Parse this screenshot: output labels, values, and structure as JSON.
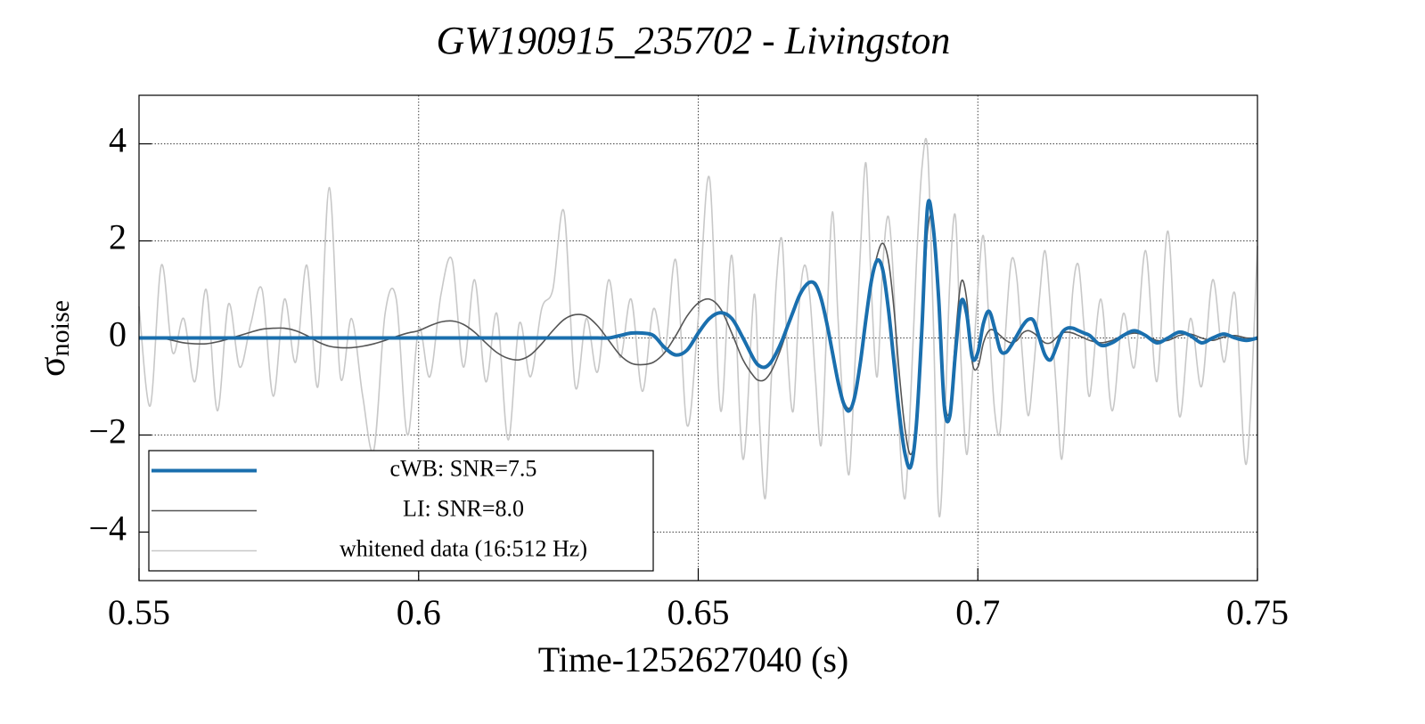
{
  "chart_data": {
    "type": "line",
    "title": "GW190915_235702 - Livingston",
    "xlabel": "Time-1252627040 (s)",
    "ylabel": "σ",
    "ylabel_subscript": "noise",
    "xlim": [
      0.55,
      0.75
    ],
    "xticks": [
      0.55,
      0.6,
      0.65,
      0.7,
      0.75
    ],
    "ylim": [
      -5,
      5
    ],
    "yticks": [
      {
        "value": -4,
        "label": "−4"
      },
      {
        "value": -2,
        "label": "−2"
      },
      0,
      2,
      4
    ],
    "grid": true,
    "legend_position": "lower left",
    "x": [
      0.55,
      0.552,
      0.554,
      0.556,
      0.558,
      0.56,
      0.562,
      0.564,
      0.566,
      0.568,
      0.57,
      0.572,
      0.574,
      0.576,
      0.578,
      0.58,
      0.582,
      0.584,
      0.586,
      0.588,
      0.59,
      0.592,
      0.594,
      0.596,
      0.598,
      0.6,
      0.602,
      0.604,
      0.606,
      0.608,
      0.61,
      0.612,
      0.614,
      0.616,
      0.618,
      0.62,
      0.622,
      0.624,
      0.626,
      0.628,
      0.63,
      0.632,
      0.634,
      0.636,
      0.638,
      0.64,
      0.642,
      0.644,
      0.646,
      0.648,
      0.65,
      0.652,
      0.654,
      0.656,
      0.658,
      0.66,
      0.661,
      0.662,
      0.663,
      0.664,
      0.665,
      0.666,
      0.667,
      0.668,
      0.669,
      0.67,
      0.671,
      0.672,
      0.673,
      0.674,
      0.675,
      0.676,
      0.677,
      0.678,
      0.679,
      0.68,
      0.681,
      0.682,
      0.683,
      0.684,
      0.685,
      0.686,
      0.687,
      0.688,
      0.689,
      0.69,
      0.691,
      0.692,
      0.693,
      0.694,
      0.695,
      0.696,
      0.697,
      0.698,
      0.699,
      0.7,
      0.701,
      0.702,
      0.703,
      0.704,
      0.705,
      0.706,
      0.707,
      0.708,
      0.709,
      0.71,
      0.711,
      0.712,
      0.713,
      0.714,
      0.715,
      0.716,
      0.717,
      0.718,
      0.719,
      0.72,
      0.722,
      0.724,
      0.726,
      0.728,
      0.73,
      0.732,
      0.734,
      0.736,
      0.738,
      0.74,
      0.742,
      0.744,
      0.746,
      0.748,
      0.75
    ],
    "series": [
      {
        "name": "whitened data (16:512 Hz)",
        "color": "#c8c8c8",
        "width": 1.6,
        "values": [
          0.65,
          -1.4,
          1.5,
          -0.3,
          0.4,
          -0.9,
          1.0,
          -1.5,
          0.7,
          -0.6,
          0.3,
          1.0,
          -1.2,
          0.8,
          -0.5,
          1.5,
          -1.0,
          3.1,
          -0.8,
          0.4,
          -1.2,
          -2.3,
          0.5,
          0.8,
          -2.0,
          0.2,
          -0.8,
          0.9,
          1.6,
          -0.6,
          1.2,
          -0.9,
          0.5,
          -2.1,
          0.3,
          -0.8,
          0.6,
          1.0,
          2.6,
          -1.0,
          0.4,
          -0.7,
          1.2,
          -0.4,
          0.8,
          -1.1,
          0.6,
          -0.3,
          1.6,
          -1.8,
          0.4,
          3.3,
          -1.5,
          1.7,
          -2.5,
          0.9,
          -1.8,
          -3.3,
          -1.0,
          1.2,
          2.0,
          -0.4,
          -1.5,
          0.6,
          1.5,
          0.8,
          -0.9,
          -2.2,
          0.3,
          2.6,
          0.4,
          -1.6,
          -2.8,
          -0.6,
          1.8,
          3.6,
          0.9,
          -0.8,
          1.5,
          2.5,
          1.0,
          -2.0,
          -3.3,
          -1.2,
          1.5,
          3.5,
          3.9,
          0.5,
          -3.6,
          -2.0,
          1.2,
          2.5,
          -0.5,
          -2.4,
          -0.8,
          1.0,
          2.1,
          0.3,
          -1.5,
          -1.9,
          0.2,
          1.6,
          1.2,
          -0.4,
          -1.6,
          -0.6,
          0.8,
          1.8,
          0.6,
          -1.0,
          -2.5,
          -0.8,
          1.0,
          1.5,
          0.2,
          -1.2,
          0.8,
          -1.5,
          0.5,
          -0.6,
          1.8,
          -0.9,
          2.2,
          -1.6,
          0.4,
          -1.0,
          1.2,
          -0.5,
          0.9,
          -2.6,
          1.9
        ]
      },
      {
        "name": "LI: SNR=8.0",
        "color": "#555555",
        "width": 1.6,
        "values": [
          0,
          0,
          0,
          -0.05,
          -0.1,
          -0.12,
          -0.12,
          -0.08,
          -0.02,
          0.05,
          0.12,
          0.18,
          0.2,
          0.2,
          0.15,
          0.05,
          -0.08,
          -0.17,
          -0.2,
          -0.2,
          -0.17,
          -0.12,
          -0.05,
          0.03,
          0.1,
          0.15,
          0.25,
          0.33,
          0.35,
          0.28,
          0.12,
          -0.1,
          -0.3,
          -0.42,
          -0.45,
          -0.35,
          -0.12,
          0.15,
          0.38,
          0.48,
          0.45,
          0.25,
          -0.05,
          -0.35,
          -0.52,
          -0.55,
          -0.5,
          -0.3,
          0.05,
          0.45,
          0.72,
          0.8,
          0.6,
          0.1,
          -0.45,
          -0.8,
          -0.88,
          -0.85,
          -0.7,
          -0.45,
          -0.15,
          0.2,
          0.55,
          0.85,
          1.05,
          1.15,
          1.05,
          0.75,
          0.25,
          -0.35,
          -0.9,
          -1.3,
          -1.45,
          -1.2,
          -0.6,
          0.3,
          1.1,
          1.7,
          1.95,
          1.6,
          0.6,
          -0.8,
          -1.9,
          -2.4,
          -1.8,
          0.2,
          2.2,
          2.4,
          0.9,
          -1.2,
          -1.5,
          0.0,
          1.15,
          0.8,
          -0.5,
          -0.6,
          -0.1,
          0.15,
          0.15,
          0.05,
          -0.05,
          -0.1,
          -0.05,
          0.1,
          0.15,
          0.1,
          0.0,
          -0.1,
          -0.1,
          0.0,
          0.1,
          0.12,
          0.1,
          0.05,
          0.0,
          -0.05,
          -0.1,
          -0.05,
          0.05,
          0.1,
          0.05,
          -0.05,
          -0.05,
          0.05,
          0.08,
          0.0,
          -0.05,
          0.02,
          0.05,
          0.0,
          0.0
        ]
      },
      {
        "name": "cWB: SNR=7.5",
        "color": "#1a6fae",
        "width": 4,
        "values": [
          0,
          0,
          0,
          0,
          0,
          0,
          0,
          0,
          0,
          0,
          0,
          0,
          0,
          0,
          0,
          0,
          0,
          0,
          0,
          0,
          0,
          0,
          0,
          0,
          0,
          0,
          0,
          0,
          0,
          0,
          0,
          0,
          0,
          0,
          0,
          0,
          0,
          0,
          0,
          0,
          0,
          0,
          0,
          0.05,
          0.1,
          0.1,
          0.05,
          -0.2,
          -0.35,
          -0.25,
          0.1,
          0.4,
          0.52,
          0.4,
          0.0,
          -0.45,
          -0.58,
          -0.6,
          -0.5,
          -0.3,
          -0.05,
          0.25,
          0.55,
          0.85,
          1.05,
          1.15,
          1.1,
          0.8,
          0.3,
          -0.3,
          -0.9,
          -1.35,
          -1.5,
          -1.2,
          -0.5,
          0.4,
          1.2,
          1.6,
          1.4,
          0.6,
          -0.5,
          -1.6,
          -2.4,
          -2.65,
          -1.8,
          0.2,
          2.7,
          2.3,
          0.8,
          -1.4,
          -1.6,
          -0.3,
          0.75,
          0.5,
          -0.4,
          -0.3,
          0.3,
          0.55,
          0.2,
          -0.25,
          -0.3,
          -0.15,
          0.05,
          0.25,
          0.38,
          0.35,
          0.0,
          -0.35,
          -0.45,
          -0.2,
          0.1,
          0.2,
          0.2,
          0.15,
          0.1,
          0.05,
          -0.15,
          -0.1,
          0.05,
          0.15,
          0.05,
          -0.1,
          0.0,
          0.12,
          0.05,
          -0.1,
          0.0,
          0.08,
          0.0,
          -0.05,
          0.0
        ]
      }
    ]
  }
}
